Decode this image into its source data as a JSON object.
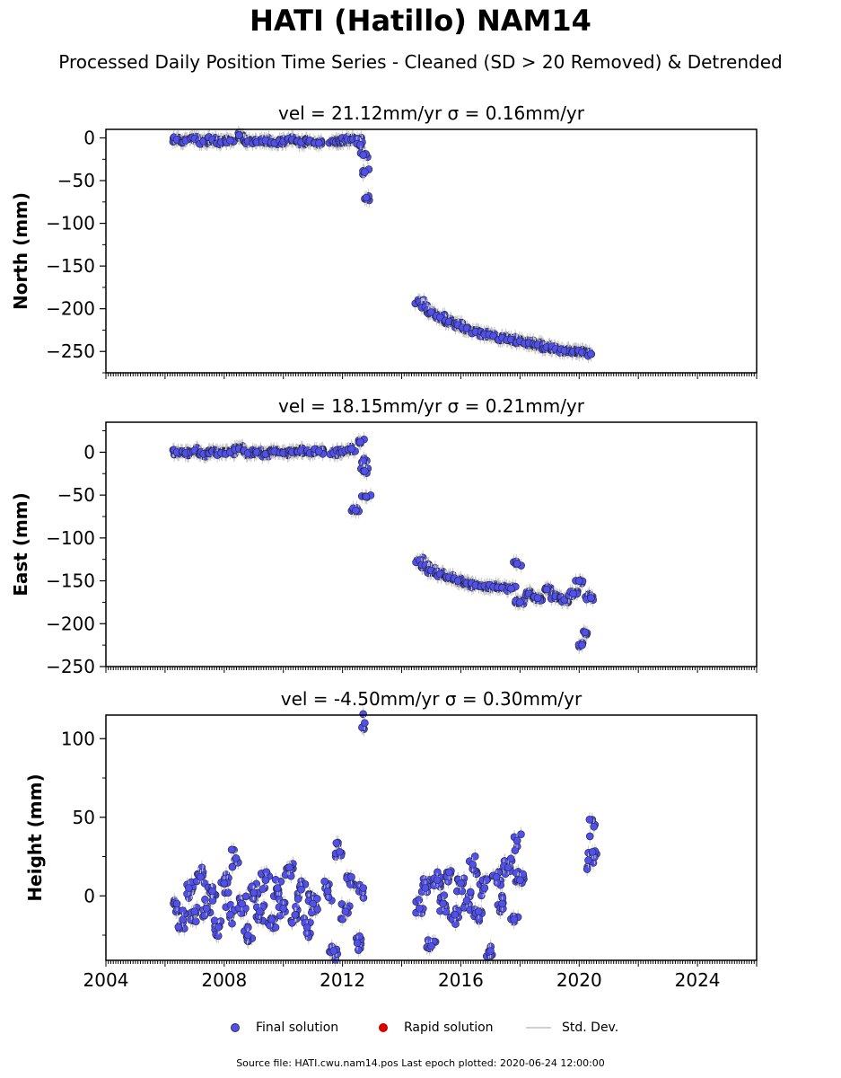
{
  "title": "HATI (Hatillo) NAM14",
  "subtitle": "Processed Daily Position Time Series - Cleaned (SD > 20 Removed) & Detrended",
  "footer": "Source file: HATI.cwu.nam14.pos  Last epoch plotted: 2020-06-24 12:00:00",
  "legend": {
    "final": "Final solution",
    "rapid": "Rapid solution",
    "std": "Std. Dev."
  },
  "colors": {
    "final": "#5050f0",
    "rapid": "#e00000",
    "std": "#c8c8c8"
  },
  "chart_data": [
    {
      "type": "scatter",
      "title": "vel = 21.12mm/yr   σ = 0.16mm/yr",
      "ylabel": "North (mm)",
      "xlim": [
        2004,
        2026
      ],
      "ylim": [
        -275,
        10
      ],
      "yticks": [
        0,
        -50,
        -100,
        -150,
        -200,
        -250
      ],
      "ytick_labels": [
        "0",
        "−50",
        "−100",
        "−150",
        "−200",
        "−250"
      ],
      "series": [
        {
          "x": [
            2006.4,
            2006.7,
            2007.0,
            2007.3,
            2007.6,
            2007.9,
            2008.2,
            2008.5,
            2008.8,
            2009.1,
            2009.4,
            2009.7,
            2010.0,
            2010.3,
            2010.6,
            2010.9,
            2011.2,
            2011.7,
            2011.9,
            2012.1,
            2012.3,
            2012.5,
            2012.6,
            2012.7,
            2012.75,
            2012.8
          ],
          "y": [
            -2,
            -3,
            -1,
            -4,
            -2,
            -5,
            -3,
            3,
            -4,
            -5,
            -3,
            -6,
            -4,
            -2,
            -5,
            -3,
            -6,
            -4,
            -5,
            -3,
            -2,
            -1,
            -8,
            -20,
            -40,
            -70
          ]
        },
        {
          "x": [
            2014.6,
            2014.8,
            2015.0,
            2015.3,
            2015.6,
            2015.9,
            2016.2,
            2016.5,
            2016.8,
            2017.1,
            2017.4,
            2017.7,
            2018.0,
            2018.3,
            2018.6,
            2018.9,
            2019.2,
            2019.5,
            2019.8,
            2020.1,
            2020.4
          ],
          "y": [
            -192,
            -198,
            -204,
            -210,
            -215,
            -219,
            -223,
            -227,
            -230,
            -232,
            -234,
            -236,
            -238,
            -240,
            -242,
            -245,
            -247,
            -249,
            -250,
            -251,
            -253
          ]
        }
      ]
    },
    {
      "type": "scatter",
      "title": "vel = 18.15mm/yr   σ = 0.21mm/yr",
      "ylabel": "East (mm)",
      "xlim": [
        2004,
        2026
      ],
      "ylim": [
        -250,
        35
      ],
      "yticks": [
        0,
        -50,
        -100,
        -150,
        -200,
        -250
      ],
      "ytick_labels": [
        "0",
        "−50",
        "−100",
        "−150",
        "−200",
        "−250"
      ],
      "series": [
        {
          "x": [
            2006.4,
            2006.7,
            2007.0,
            2007.3,
            2007.6,
            2007.9,
            2008.2,
            2008.5,
            2008.8,
            2009.1,
            2009.4,
            2009.7,
            2010.0,
            2010.3,
            2010.6,
            2010.9,
            2011.2,
            2011.7,
            2011.9,
            2012.1,
            2012.3,
            2012.45,
            2012.6,
            2012.7,
            2012.75,
            2012.8
          ],
          "y": [
            0,
            -1,
            2,
            -2,
            1,
            -1,
            0,
            4,
            -1,
            0,
            -2,
            1,
            -1,
            0,
            2,
            -1,
            1,
            -1,
            0,
            2,
            4,
            -68,
            12,
            -10,
            -22,
            -52
          ]
        },
        {
          "x": [
            2014.6,
            2014.8,
            2015.0,
            2015.3,
            2015.6,
            2015.9,
            2016.2,
            2016.5,
            2016.8,
            2017.1,
            2017.4,
            2017.7,
            2017.9,
            2018.0,
            2018.3,
            2018.6,
            2018.9,
            2019.2,
            2019.5,
            2019.8,
            2020.0,
            2020.1,
            2020.2,
            2020.3,
            2020.4
          ],
          "y": [
            -126,
            -132,
            -138,
            -142,
            -146,
            -150,
            -153,
            -155,
            -156,
            -157,
            -158,
            -159,
            -130,
            -175,
            -165,
            -170,
            -160,
            -168,
            -172,
            -165,
            -150,
            -225,
            -210,
            -168,
            -170
          ]
        }
      ]
    },
    {
      "type": "scatter",
      "title": "vel = -4.50mm/yr   σ = 0.30mm/yr",
      "ylabel": "Height (mm)",
      "xlabel": "",
      "xlim": [
        2004,
        2026
      ],
      "ylim": [
        -41,
        115
      ],
      "yticks": [
        100,
        50,
        0
      ],
      "ytick_labels": [
        "100",
        "50",
        "0"
      ],
      "xticks": [
        2004,
        2008,
        2012,
        2016,
        2020,
        2024
      ],
      "xtick_labels": [
        "2004",
        "2008",
        "2012",
        "2016",
        "2020",
        "2024"
      ],
      "series": [
        {
          "x": [
            2006.4,
            2006.6,
            2006.8,
            2007.0,
            2007.2,
            2007.4,
            2007.6,
            2007.8,
            2008.0,
            2008.2,
            2008.4,
            2008.6,
            2008.8,
            2009.0,
            2009.2,
            2009.4,
            2009.6,
            2009.8,
            2010.0,
            2010.2,
            2010.4,
            2010.6,
            2010.8,
            2011.0,
            2011.5,
            2011.7,
            2011.9,
            2012.1,
            2012.3,
            2012.5,
            2012.7,
            2012.75
          ],
          "y": [
            -5,
            -15,
            5,
            -10,
            12,
            -8,
            3,
            -20,
            8,
            -12,
            24,
            -5,
            -25,
            2,
            -10,
            10,
            -15,
            5,
            -8,
            18,
            -12,
            4,
            -20,
            -5,
            3,
            -35,
            28,
            -10,
            12,
            -30,
            5,
            110
          ]
        },
        {
          "x": [
            2014.6,
            2014.8,
            2015.0,
            2015.2,
            2015.4,
            2015.6,
            2015.8,
            2016.0,
            2016.2,
            2016.4,
            2016.6,
            2016.8,
            2017.0,
            2017.2,
            2017.4,
            2017.6,
            2017.8,
            2017.9,
            2018.0,
            2020.4,
            2020.45,
            2020.5
          ],
          "y": [
            -8,
            5,
            -32,
            10,
            -5,
            15,
            -12,
            8,
            -3,
            20,
            -10,
            5,
            -35,
            12,
            -5,
            18,
            -15,
            35,
            10,
            22,
            28,
            44
          ]
        }
      ]
    }
  ]
}
